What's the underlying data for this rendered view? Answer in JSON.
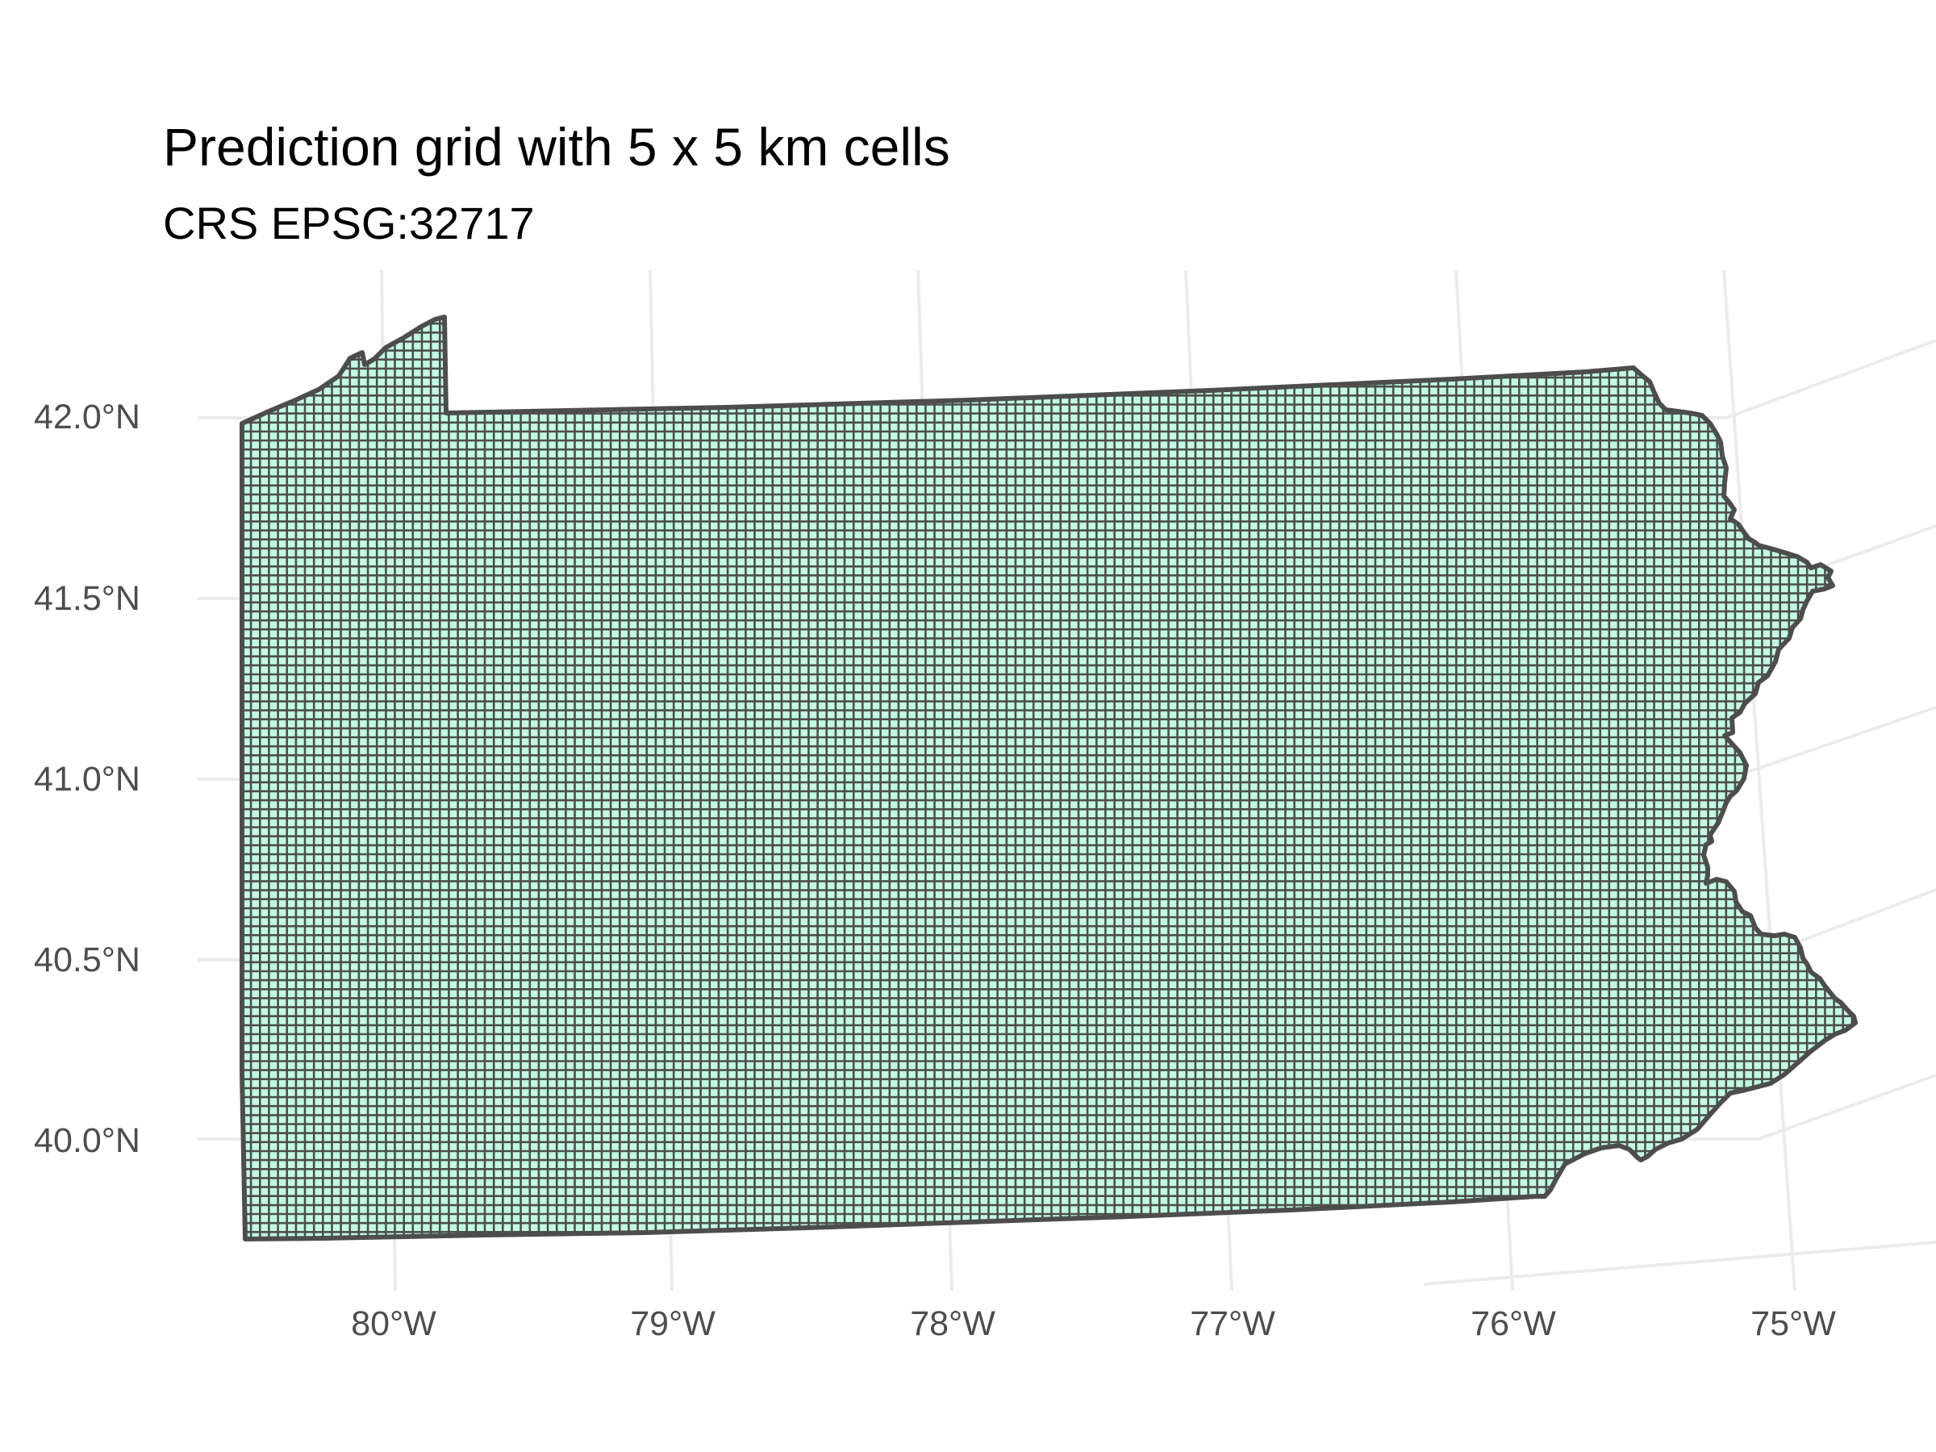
{
  "title": "Prediction grid with 5 x 5 km cells",
  "subtitle": "CRS EPSG:32717",
  "colors": {
    "cell_fill": "#c2fce3",
    "cell_border": "#4d4d4d",
    "graticule": "#ebebeb",
    "axis_text": "#4d4d4d"
  },
  "axes": {
    "y_ticks": [
      {
        "value": 42.0,
        "label": "42.0°N"
      },
      {
        "value": 41.5,
        "label": "41.5°N"
      },
      {
        "value": 41.0,
        "label": "41.0°N"
      },
      {
        "value": 40.5,
        "label": "40.5°N"
      },
      {
        "value": 40.0,
        "label": "40.0°N"
      }
    ],
    "x_ticks": [
      {
        "value": -80,
        "label": "80°W"
      },
      {
        "value": -79,
        "label": "79°W"
      },
      {
        "value": -78,
        "label": "78°W"
      },
      {
        "value": -77,
        "label": "77°W"
      },
      {
        "value": -76,
        "label": "76°W"
      },
      {
        "value": -75,
        "label": "75°W"
      }
    ]
  },
  "map": {
    "region": "Pennsylvania",
    "cell_size_km": 5,
    "crs": "EPSG:32717",
    "grid_lines": true
  }
}
